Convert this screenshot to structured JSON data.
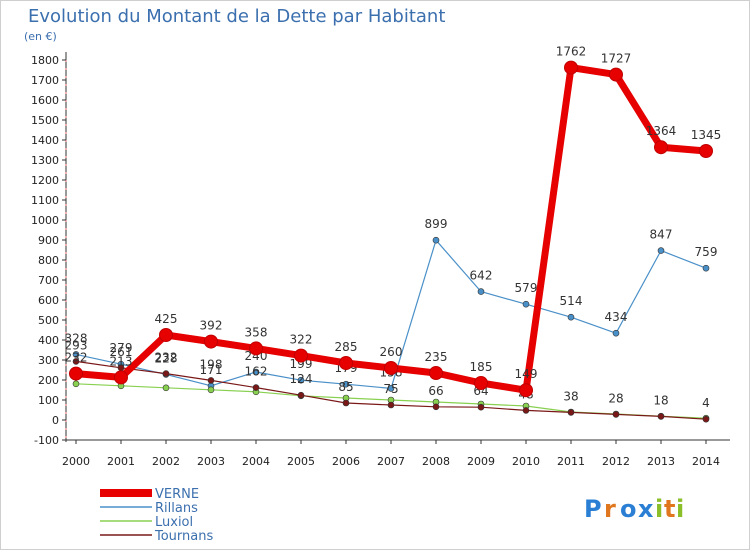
{
  "chart_data": {
    "type": "line",
    "title": "Evolution du Montant de la Dette par Habitant",
    "subtitle": "(en €)",
    "xlabel": "",
    "ylabel": "",
    "x": [
      "2000",
      "2001",
      "2002",
      "2003",
      "2004",
      "2005",
      "2006",
      "2007",
      "2008",
      "2009",
      "2010",
      "2011",
      "2012",
      "2013",
      "2014"
    ],
    "ylim": [
      -100,
      1800
    ],
    "yticks": [
      "-100",
      "0",
      "100",
      "200",
      "300",
      "400",
      "500",
      "600",
      "700",
      "800",
      "900",
      "1000",
      "1100",
      "1200",
      "1300",
      "1400",
      "1500",
      "1600",
      "1700",
      "1800"
    ],
    "grid": false,
    "legend_position": "bottom-left",
    "series": [
      {
        "name": "VERNE",
        "color": "#e60000",
        "emphasis": true,
        "values": [
          232,
          213,
          425,
          392,
          358,
          322,
          285,
          260,
          235,
          185,
          149,
          1762,
          1727,
          1364,
          1345
        ],
        "labels": [
          "232",
          "213",
          "425",
          "392",
          "358",
          "322",
          "285",
          "260",
          "235",
          "185",
          "149",
          "1762",
          "1727",
          "1364",
          "1345"
        ]
      },
      {
        "name": "Rillans",
        "color": "#4a90c8",
        "values": [
          328,
          279,
          228,
          171,
          240,
          199,
          179,
          158,
          899,
          642,
          579,
          514,
          434,
          847,
          759
        ],
        "labels": [
          "328",
          "279",
          "228",
          "171",
          "240",
          "199",
          "179",
          "158",
          "899",
          "642",
          "579",
          "514",
          "434",
          "847",
          "759"
        ]
      },
      {
        "name": "Luxiol",
        "color": "#88d050",
        "values": [
          181,
          171,
          161,
          151,
          141,
          121,
          110,
          100,
          90,
          80,
          70,
          40,
          30,
          19,
          9
        ],
        "labels": [
          "",
          "",
          "",
          "",
          "",
          "",
          "",
          "",
          "",
          "",
          "",
          "",
          "",
          "",
          ""
        ]
      },
      {
        "name": "Tournans",
        "color": "#7a1818",
        "values": [
          293,
          261,
          232,
          198,
          162,
          124,
          85,
          75,
          66,
          64,
          48,
          38,
          28,
          18,
          4
        ],
        "labels": [
          "293",
          "261",
          "232",
          "198",
          "162",
          "124",
          "85",
          "75",
          "66",
          "64",
          "48",
          "38",
          "28",
          "18",
          "4"
        ]
      }
    ]
  },
  "logo": {
    "text": "Proxiti",
    "letters": [
      "P",
      "r",
      "o",
      "x",
      "i",
      "t",
      "i"
    ],
    "colors": [
      "#2a7fd4",
      "#e0761e",
      "#2a7fd4",
      "#2a7fd4",
      "#8bbf2a",
      "#e0761e",
      "#8bbf2a"
    ]
  }
}
